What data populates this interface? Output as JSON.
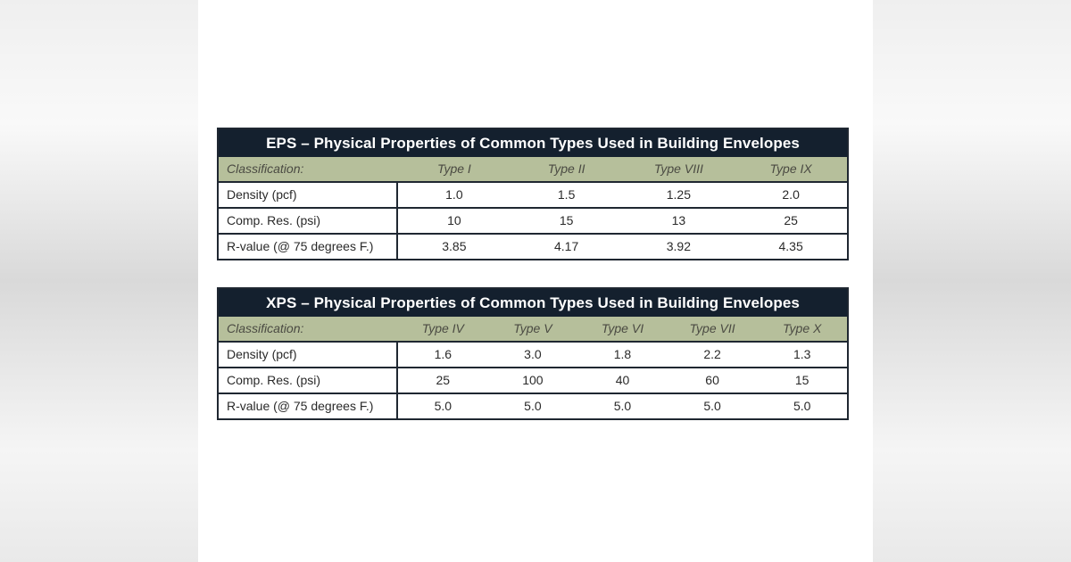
{
  "eps": {
    "title_abbr": "EPS",
    "title_rest": " – Physical Properties of Common Types Used in Building Envelopes",
    "header": {
      "label": "Classification:",
      "types": [
        "Type I",
        "Type II",
        "Type VIII",
        "Type IX"
      ]
    },
    "rows": [
      {
        "label": "Density (pcf)",
        "values": [
          "1.0",
          "1.5",
          "1.25",
          "2.0"
        ]
      },
      {
        "label": "Comp. Res. (psi)",
        "values": [
          "10",
          "15",
          "13",
          "25"
        ]
      },
      {
        "label": "R-value (@ 75 degrees F.)",
        "values": [
          "3.85",
          "4.17",
          "3.92",
          "4.35"
        ]
      }
    ]
  },
  "xps": {
    "title_abbr": "XPS",
    "title_rest": " – Physical Properties of Common Types Used in Building Envelopes",
    "header": {
      "label": "Classification:",
      "types": [
        "Type IV",
        "Type V",
        "Type VI",
        "Type VII",
        "Type X"
      ]
    },
    "rows": [
      {
        "label": "Density (pcf)",
        "values": [
          "1.6",
          "3.0",
          "1.8",
          "2.2",
          "1.3"
        ]
      },
      {
        "label": "Comp. Res. (psi)",
        "values": [
          "25",
          "100",
          "40",
          "60",
          "15"
        ]
      },
      {
        "label": "R-value (@ 75 degrees F.)",
        "values": [
          "5.0",
          "5.0",
          "5.0",
          "5.0",
          "5.0"
        ]
      }
    ]
  }
}
